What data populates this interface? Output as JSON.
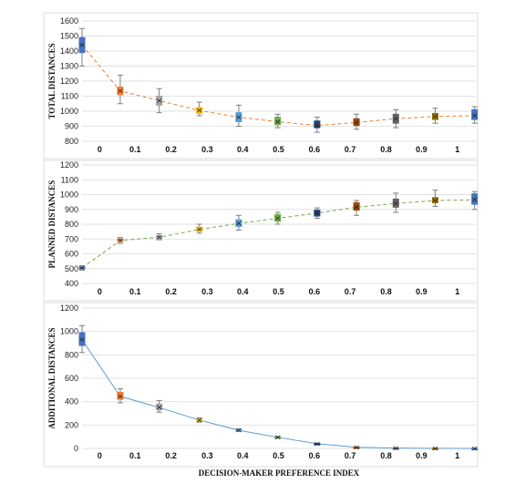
{
  "chart_data": [
    {
      "type": "box",
      "title": "",
      "ylabel": "TOTAL DISTANCES",
      "xlabel": "",
      "ylim": [
        800,
        1600
      ],
      "yticks": [
        "800",
        "900",
        "1000",
        "1100",
        "1200",
        "1300",
        "1400",
        "1500",
        "1600"
      ],
      "categories": [
        "0",
        "0.1",
        "0.2",
        "0.3",
        "0.4",
        "0.5",
        "0.6",
        "0.7",
        "0.8",
        "0.9",
        "1"
      ],
      "trend_color": "#ed7d31",
      "trend_style": "dashed",
      "boxes": [
        {
          "x": 0,
          "min": 1300,
          "q1": 1390,
          "median": 1440,
          "q3": 1490,
          "max": 1550,
          "color": "#4472c4"
        },
        {
          "x": 0.1,
          "min": 1050,
          "q1": 1110,
          "median": 1135,
          "q3": 1160,
          "max": 1240,
          "color": "#ed7d31"
        },
        {
          "x": 0.2,
          "min": 990,
          "q1": 1040,
          "median": 1070,
          "q3": 1100,
          "max": 1150,
          "color": "#a5a5a5"
        },
        {
          "x": 0.3,
          "min": 970,
          "q1": 985,
          "median": 1005,
          "q3": 1025,
          "max": 1060,
          "color": "#ffc000"
        },
        {
          "x": 0.4,
          "min": 900,
          "q1": 930,
          "median": 960,
          "q3": 990,
          "max": 1040,
          "color": "#5b9bd5"
        },
        {
          "x": 0.5,
          "min": 890,
          "q1": 910,
          "median": 930,
          "q3": 960,
          "max": 980,
          "color": "#70ad47"
        },
        {
          "x": 0.6,
          "min": 860,
          "q1": 890,
          "median": 905,
          "q3": 935,
          "max": 960,
          "color": "#264478"
        },
        {
          "x": 0.7,
          "min": 880,
          "q1": 905,
          "median": 925,
          "q3": 950,
          "max": 980,
          "color": "#9e480e"
        },
        {
          "x": 0.8,
          "min": 890,
          "q1": 920,
          "median": 950,
          "q3": 980,
          "max": 1010,
          "color": "#636363"
        },
        {
          "x": 0.9,
          "min": 920,
          "q1": 945,
          "median": 965,
          "q3": 985,
          "max": 1020,
          "color": "#997300"
        },
        {
          "x": 1,
          "min": 920,
          "q1": 945,
          "median": 970,
          "q3": 1010,
          "max": 1030,
          "color": "#4472c4"
        }
      ]
    },
    {
      "type": "box",
      "title": "",
      "ylabel": "PLANNED DISTANCES",
      "xlabel": "",
      "ylim": [
        400,
        1200
      ],
      "yticks": [
        "400",
        "500",
        "600",
        "700",
        "800",
        "900",
        "1000",
        "1100",
        "1200"
      ],
      "categories": [
        "0",
        "0.1",
        "0.2",
        "0.3",
        "0.4",
        "0.5",
        "0.6",
        "0.7",
        "0.8",
        "0.9",
        "1"
      ],
      "trend_color": "#70ad47",
      "trend_style": "dashed",
      "boxes": [
        {
          "x": 0,
          "min": 490,
          "q1": 500,
          "median": 505,
          "q3": 510,
          "max": 520,
          "color": "#4472c4"
        },
        {
          "x": 0.1,
          "min": 670,
          "q1": 685,
          "median": 690,
          "q3": 700,
          "max": 710,
          "color": "#ed7d31"
        },
        {
          "x": 0.2,
          "min": 695,
          "q1": 705,
          "median": 712,
          "q3": 722,
          "max": 735,
          "color": "#a5a5a5"
        },
        {
          "x": 0.3,
          "min": 740,
          "q1": 755,
          "median": 765,
          "q3": 780,
          "max": 800,
          "color": "#ffc000"
        },
        {
          "x": 0.4,
          "min": 760,
          "q1": 785,
          "median": 805,
          "q3": 830,
          "max": 860,
          "color": "#5b9bd5"
        },
        {
          "x": 0.5,
          "min": 800,
          "q1": 820,
          "median": 840,
          "q3": 865,
          "max": 880,
          "color": "#70ad47"
        },
        {
          "x": 0.6,
          "min": 840,
          "q1": 855,
          "median": 875,
          "q3": 895,
          "max": 910,
          "color": "#264478"
        },
        {
          "x": 0.7,
          "min": 860,
          "q1": 895,
          "median": 915,
          "q3": 945,
          "max": 960,
          "color": "#9e480e"
        },
        {
          "x": 0.8,
          "min": 880,
          "q1": 915,
          "median": 940,
          "q3": 970,
          "max": 1010,
          "color": "#636363"
        },
        {
          "x": 0.9,
          "min": 920,
          "q1": 945,
          "median": 960,
          "q3": 980,
          "max": 1030,
          "color": "#997300"
        },
        {
          "x": 1,
          "min": 900,
          "q1": 935,
          "median": 965,
          "q3": 1005,
          "max": 1020,
          "color": "#4472c4"
        }
      ]
    },
    {
      "type": "box",
      "title": "",
      "ylabel": "ADDITIONAL DISTANCES",
      "xlabel": "DECISION-MAKER PREFERENCE INDEX",
      "ylim": [
        0,
        1200
      ],
      "yticks": [
        "0",
        "200",
        "400",
        "600",
        "800",
        "1000",
        "1200"
      ],
      "categories": [
        "0",
        "0.1",
        "0.2",
        "0.3",
        "0.4",
        "0.5",
        "0.6",
        "0.7",
        "0.8",
        "0.9",
        "1"
      ],
      "trend_color": "#5b9bd5",
      "trend_style": "solid",
      "boxes": [
        {
          "x": 0,
          "min": 820,
          "q1": 880,
          "median": 930,
          "q3": 990,
          "max": 1050,
          "color": "#4472c4"
        },
        {
          "x": 0.1,
          "min": 390,
          "q1": 420,
          "median": 445,
          "q3": 480,
          "max": 510,
          "color": "#ed7d31"
        },
        {
          "x": 0.2,
          "min": 310,
          "q1": 330,
          "median": 350,
          "q3": 380,
          "max": 410,
          "color": "#a5a5a5"
        },
        {
          "x": 0.3,
          "min": 225,
          "q1": 235,
          "median": 242,
          "q3": 250,
          "max": 262,
          "color": "#ffc000"
        },
        {
          "x": 0.4,
          "min": 145,
          "q1": 150,
          "median": 155,
          "q3": 160,
          "max": 168,
          "color": "#5b9bd5"
        },
        {
          "x": 0.5,
          "min": 90,
          "q1": 93,
          "median": 95,
          "q3": 98,
          "max": 102,
          "color": "#70ad47"
        },
        {
          "x": 0.6,
          "min": 36,
          "q1": 38,
          "median": 40,
          "q3": 42,
          "max": 44,
          "color": "#264478"
        },
        {
          "x": 0.7,
          "min": 8,
          "q1": 9,
          "median": 10,
          "q3": 11,
          "max": 12,
          "color": "#9e480e"
        },
        {
          "x": 0.8,
          "min": 2,
          "q1": 3,
          "median": 3,
          "q3": 4,
          "max": 5,
          "color": "#636363"
        },
        {
          "x": 0.9,
          "min": 0,
          "q1": 1,
          "median": 1,
          "q3": 2,
          "max": 2,
          "color": "#997300"
        },
        {
          "x": 1,
          "min": 0,
          "q1": 0,
          "median": 0,
          "q3": 1,
          "max": 1,
          "color": "#4472c4"
        }
      ]
    }
  ]
}
